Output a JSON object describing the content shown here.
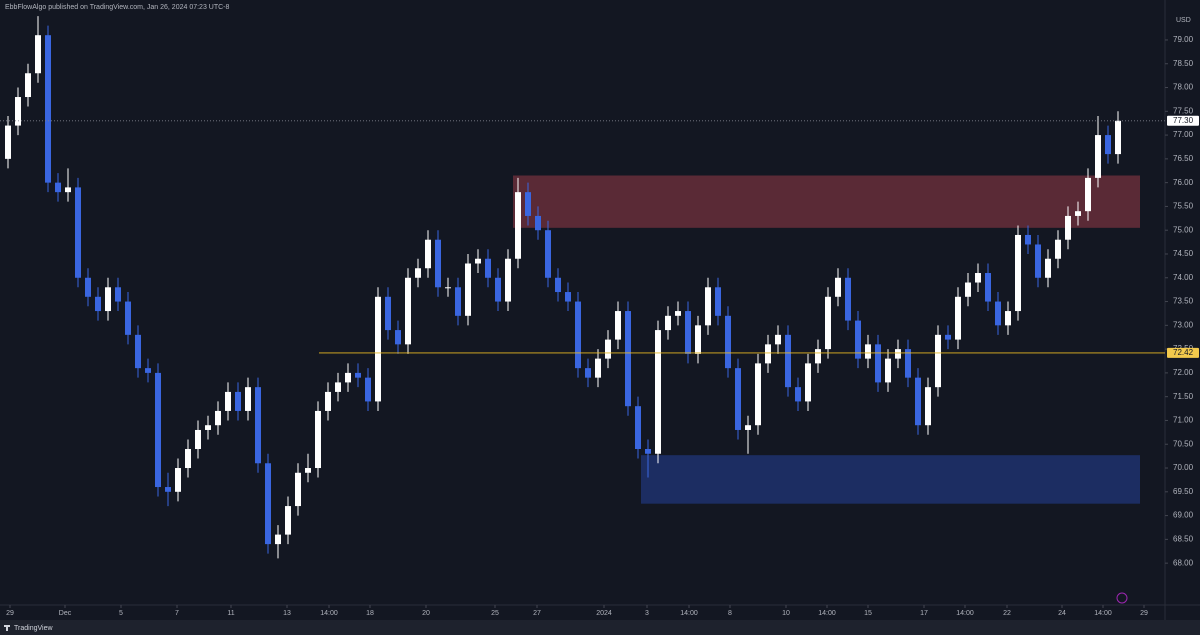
{
  "chart_data": {
    "type": "candlestick",
    "title": "EbbFlowAlgo published on TradingView.com, Jan 26, 2024 07:23 UTC-8",
    "currency": "USD",
    "footer": "TradingView",
    "up_color": "#ffffff",
    "down_color": "#3a66e0",
    "open": [
      76.5,
      77.2,
      77.8,
      78.3,
      79.1,
      76.0,
      75.8,
      75.9,
      74.0,
      73.6,
      73.3,
      73.8,
      73.5,
      72.8,
      72.1,
      72.0,
      69.6,
      69.5,
      70.0,
      70.4,
      70.8,
      70.9,
      71.2,
      71.6,
      71.2,
      71.7,
      70.1,
      68.4,
      68.6,
      69.2,
      69.9,
      70.0,
      71.2,
      71.6,
      71.8,
      72.0,
      71.9,
      71.4,
      73.6,
      72.9,
      72.6,
      74.0,
      74.2,
      74.8,
      73.8,
      73.8,
      73.2,
      74.3,
      74.4,
      74.0,
      73.5,
      74.4,
      75.8,
      75.3,
      75.0,
      74.0,
      73.7,
      73.5,
      72.1,
      71.9,
      72.3,
      72.7,
      73.3,
      71.3,
      70.4,
      70.3,
      72.9,
      73.2,
      73.3,
      72.4,
      73.0,
      73.8,
      73.2,
      72.1,
      70.8,
      70.9,
      72.2,
      72.6,
      72.8,
      71.7,
      71.4,
      72.2,
      72.5,
      73.6,
      74.0,
      73.1,
      72.3,
      72.6,
      71.8,
      72.3,
      72.5,
      71.9,
      70.9,
      71.7,
      72.8,
      72.7,
      73.6,
      73.9,
      74.1,
      73.5,
      73.0,
      73.3,
      74.9,
      74.7,
      74.0,
      74.4,
      74.8,
      75.3,
      75.4,
      76.1,
      77.0,
      76.6
    ],
    "high": [
      77.4,
      78.0,
      78.5,
      79.5,
      79.3,
      76.2,
      76.3,
      76.1,
      74.2,
      73.8,
      74.0,
      74.0,
      73.7,
      73.0,
      72.3,
      72.2,
      69.9,
      70.2,
      70.6,
      71.0,
      71.1,
      71.4,
      71.8,
      71.8,
      71.9,
      71.9,
      70.3,
      68.8,
      69.4,
      70.1,
      70.3,
      71.4,
      71.8,
      72.0,
      72.2,
      72.2,
      72.1,
      73.8,
      73.8,
      73.1,
      74.2,
      74.4,
      75.0,
      75.0,
      74.0,
      74.0,
      74.5,
      74.6,
      74.6,
      74.2,
      74.6,
      76.1,
      76.0,
      75.5,
      75.2,
      74.2,
      73.9,
      73.7,
      72.3,
      72.5,
      72.9,
      73.5,
      73.5,
      71.5,
      70.6,
      73.1,
      73.4,
      73.5,
      73.5,
      73.2,
      74.0,
      74.0,
      73.4,
      72.3,
      71.1,
      72.4,
      72.8,
      73.0,
      73.0,
      71.9,
      72.4,
      72.7,
      73.8,
      74.2,
      74.2,
      73.3,
      72.8,
      72.8,
      72.5,
      72.7,
      72.7,
      72.1,
      71.9,
      73.0,
      73.0,
      73.8,
      74.1,
      74.3,
      74.3,
      73.7,
      73.5,
      75.1,
      75.1,
      74.9,
      74.6,
      75.0,
      75.5,
      75.6,
      76.3,
      77.4,
      77.2,
      77.5
    ],
    "low": [
      76.3,
      77.0,
      77.6,
      78.1,
      75.8,
      75.6,
      75.6,
      73.8,
      73.4,
      73.1,
      73.1,
      73.3,
      72.6,
      71.9,
      71.8,
      69.4,
      69.2,
      69.3,
      69.8,
      70.2,
      70.6,
      70.7,
      71.0,
      71.0,
      71.0,
      69.9,
      68.2,
      68.1,
      68.4,
      69.0,
      69.7,
      69.8,
      71.0,
      71.4,
      71.6,
      71.7,
      71.2,
      71.2,
      72.7,
      72.4,
      72.4,
      73.8,
      74.0,
      73.6,
      73.6,
      73.0,
      73.0,
      74.1,
      73.8,
      73.3,
      73.3,
      74.2,
      75.1,
      74.8,
      73.8,
      73.5,
      73.3,
      71.9,
      71.7,
      71.7,
      72.1,
      72.5,
      71.1,
      70.2,
      69.8,
      70.1,
      72.7,
      73.0,
      72.2,
      72.2,
      72.8,
      73.0,
      71.9,
      70.6,
      70.3,
      70.7,
      72.0,
      72.4,
      71.5,
      71.2,
      71.2,
      72.0,
      72.3,
      73.4,
      72.9,
      72.1,
      72.1,
      71.6,
      71.6,
      72.1,
      71.7,
      70.7,
      70.7,
      71.5,
      72.5,
      72.5,
      73.4,
      73.7,
      73.3,
      72.8,
      72.8,
      73.1,
      74.5,
      73.8,
      73.8,
      74.2,
      74.6,
      75.1,
      75.2,
      75.9,
      76.4,
      76.4
    ],
    "close": [
      77.2,
      77.8,
      78.3,
      79.1,
      76.0,
      75.8,
      75.9,
      74.0,
      73.6,
      73.3,
      73.8,
      73.5,
      72.8,
      72.1,
      72.0,
      69.6,
      69.5,
      70.0,
      70.4,
      70.8,
      70.9,
      71.2,
      71.6,
      71.2,
      71.7,
      70.1,
      68.4,
      68.6,
      69.2,
      69.9,
      70.0,
      71.2,
      71.6,
      71.8,
      72.0,
      71.9,
      71.4,
      73.6,
      72.9,
      72.6,
      74.0,
      74.2,
      74.8,
      73.8,
      73.8,
      73.2,
      74.3,
      74.4,
      74.0,
      73.5,
      74.4,
      75.8,
      75.3,
      75.0,
      74.0,
      73.7,
      73.5,
      72.1,
      71.9,
      72.3,
      72.7,
      73.3,
      71.3,
      70.4,
      70.3,
      72.9,
      73.2,
      73.3,
      72.4,
      73.0,
      73.8,
      73.2,
      72.1,
      70.8,
      70.9,
      72.2,
      72.6,
      72.8,
      71.7,
      71.4,
      72.2,
      72.5,
      73.6,
      74.0,
      73.1,
      72.3,
      72.6,
      71.8,
      72.3,
      72.5,
      71.9,
      70.9,
      71.7,
      72.8,
      72.7,
      73.6,
      73.9,
      74.1,
      73.5,
      73.0,
      73.3,
      74.9,
      74.7,
      74.0,
      74.4,
      74.8,
      75.3,
      75.4,
      76.1,
      77.0,
      76.6,
      77.3
    ],
    "xlim": [
      -0.8,
      115.7
    ],
    "xticks": [
      {
        "value": 0.2,
        "label": "29"
      },
      {
        "value": 5.7,
        "label": "Dec"
      },
      {
        "value": 11.3,
        "label": "5"
      },
      {
        "value": 16.9,
        "label": "7"
      },
      {
        "value": 22.3,
        "label": "11"
      },
      {
        "value": 27.9,
        "label": "13"
      },
      {
        "value": 32.1,
        "label": "14:00"
      },
      {
        "value": 36.2,
        "label": "18"
      },
      {
        "value": 41.8,
        "label": "20"
      },
      {
        "value": 48.7,
        "label": "25"
      },
      {
        "value": 52.9,
        "label": "27"
      },
      {
        "value": 59.6,
        "label": "2024"
      },
      {
        "value": 63.9,
        "label": "3"
      },
      {
        "value": 68.1,
        "label": "14:00"
      },
      {
        "value": 72.2,
        "label": "8"
      },
      {
        "value": 77.8,
        "label": "10"
      },
      {
        "value": 81.9,
        "label": "14:00"
      },
      {
        "value": 86,
        "label": "15"
      },
      {
        "value": 91.6,
        "label": "17"
      },
      {
        "value": 95.7,
        "label": "14:00"
      },
      {
        "value": 99.9,
        "label": "22"
      },
      {
        "value": 105.4,
        "label": "24"
      },
      {
        "value": 109.5,
        "label": "14:00"
      },
      {
        "value": 113.6,
        "label": "29"
      }
    ],
    "ylim": [
      67.12,
      79.84
    ],
    "yticks": [
      {
        "value": 68,
        "label": "68.00"
      },
      {
        "value": 68.5,
        "label": "68.50"
      },
      {
        "value": 69,
        "label": "69.00"
      },
      {
        "value": 69.5,
        "label": "69.50"
      },
      {
        "value": 70,
        "label": "70.00"
      },
      {
        "value": 70.5,
        "label": "70.50"
      },
      {
        "value": 71,
        "label": "71.00"
      },
      {
        "value": 71.5,
        "label": "71.50"
      },
      {
        "value": 72,
        "label": "72.00"
      },
      {
        "value": 72.5,
        "label": "72.50"
      },
      {
        "value": 73,
        "label": "73.00"
      },
      {
        "value": 73.5,
        "label": "73.50"
      },
      {
        "value": 74,
        "label": "74.00"
      },
      {
        "value": 74.5,
        "label": "74.50"
      },
      {
        "value": 75,
        "label": "75.00"
      },
      {
        "value": 75.5,
        "label": "75.50"
      },
      {
        "value": 76,
        "label": "76.00"
      },
      {
        "value": 76.5,
        "label": "76.50"
      },
      {
        "value": 77,
        "label": "77.00"
      },
      {
        "value": 77.5,
        "label": "77.50"
      },
      {
        "value": 78,
        "label": "78.00"
      },
      {
        "value": 78.5,
        "label": "78.50"
      },
      {
        "value": 79,
        "label": "79.00"
      }
    ],
    "zones": [
      {
        "x": [
          50.5,
          113.2
        ],
        "y": [
          75.05,
          76.15
        ],
        "color": "#5a2a36"
      },
      {
        "x": [
          63.3,
          113.2
        ],
        "y": [
          69.25,
          70.27
        ],
        "color": "#1c2d62"
      }
    ],
    "price_lines": [
      {
        "value": 77.3,
        "label": "77.30",
        "start": -0.8,
        "color": "#7d808a",
        "dashed": true,
        "box": "#ffffff"
      },
      {
        "value": 72.42,
        "label": "72.42",
        "start": 31.1,
        "color": "#e8b923",
        "dashed": false,
        "box": "#f2c94c"
      }
    ]
  }
}
